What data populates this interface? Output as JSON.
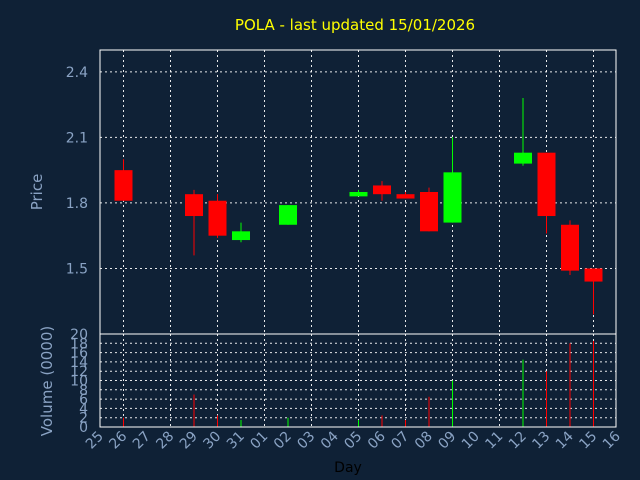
{
  "chart_data": {
    "type": "candlestick",
    "title": "POLA - last updated 15/01/2026",
    "colors": {
      "background": "#0f2136",
      "up": "#00ff00",
      "down": "#ff0000",
      "title": "#ffff00",
      "axis_text": "#8aa3c4",
      "grid": "#ffffff"
    },
    "x_ticks": [
      "25",
      "26",
      "27",
      "28",
      "29",
      "30",
      "31",
      "01",
      "02",
      "03",
      "04",
      "05",
      "06",
      "07",
      "08",
      "09",
      "10",
      "11",
      "12",
      "13",
      "14",
      "15",
      "16"
    ],
    "xlabel": "Day",
    "price": {
      "ylabel": "Price",
      "yticks": [
        "2.4",
        "2.1",
        "1.8",
        "1.5"
      ],
      "ytick_values": [
        2.4,
        2.1,
        1.8,
        1.5
      ],
      "ylim": [
        1.2,
        2.5
      ]
    },
    "volume": {
      "ylabel": "Volume (0000)",
      "yticks": [
        "20",
        "18",
        "16",
        "14",
        "12",
        "10",
        "8",
        "6",
        "4",
        "2",
        "0"
      ],
      "ytick_values": [
        20,
        18,
        16,
        14,
        12,
        10,
        8,
        6,
        4,
        2,
        0
      ],
      "ylim": [
        0,
        20
      ]
    },
    "candles": [
      {
        "day": "26",
        "open": 1.95,
        "close": 1.81,
        "high": 2.0,
        "low": 1.81
      },
      {
        "day": "29",
        "open": 1.84,
        "close": 1.74,
        "high": 1.86,
        "low": 1.56
      },
      {
        "day": "30",
        "open": 1.81,
        "close": 1.65,
        "high": 1.84,
        "low": 1.64
      },
      {
        "day": "31",
        "open": 1.63,
        "close": 1.67,
        "high": 1.71,
        "low": 1.62
      },
      {
        "day": "02",
        "open": 1.7,
        "close": 1.79,
        "high": 1.79,
        "low": 1.7
      },
      {
        "day": "05",
        "open": 1.83,
        "close": 1.85,
        "high": 1.86,
        "low": 1.83
      },
      {
        "day": "06",
        "open": 1.88,
        "close": 1.84,
        "high": 1.9,
        "low": 1.81
      },
      {
        "day": "07",
        "open": 1.84,
        "close": 1.82,
        "high": 1.85,
        "low": 1.82
      },
      {
        "day": "08",
        "open": 1.85,
        "close": 1.67,
        "high": 1.87,
        "low": 1.67
      },
      {
        "day": "09",
        "open": 1.71,
        "close": 1.94,
        "high": 2.1,
        "low": 1.71
      },
      {
        "day": "12",
        "open": 1.98,
        "close": 2.03,
        "high": 2.28,
        "low": 1.97
      },
      {
        "day": "13",
        "open": 2.03,
        "close": 1.74,
        "high": 2.03,
        "low": 1.66
      },
      {
        "day": "14",
        "open": 1.7,
        "close": 1.49,
        "high": 1.72,
        "low": 1.47
      },
      {
        "day": "15",
        "open": 1.5,
        "close": 1.44,
        "high": 1.5,
        "low": 1.29
      }
    ],
    "volumes": [
      {
        "day": "26",
        "value": 2.0,
        "direction": "down"
      },
      {
        "day": "29",
        "value": 7.0,
        "direction": "down"
      },
      {
        "day": "30",
        "value": 2.5,
        "direction": "down"
      },
      {
        "day": "31",
        "value": 1.5,
        "direction": "up"
      },
      {
        "day": "02",
        "value": 2.0,
        "direction": "up"
      },
      {
        "day": "05",
        "value": 1.5,
        "direction": "up"
      },
      {
        "day": "06",
        "value": 2.5,
        "direction": "down"
      },
      {
        "day": "07",
        "value": 1.5,
        "direction": "down"
      },
      {
        "day": "08",
        "value": 6.5,
        "direction": "down"
      },
      {
        "day": "09",
        "value": 10.0,
        "direction": "up"
      },
      {
        "day": "12",
        "value": 14.5,
        "direction": "up"
      },
      {
        "day": "13",
        "value": 12.0,
        "direction": "down"
      },
      {
        "day": "14",
        "value": 18.0,
        "direction": "down"
      },
      {
        "day": "15",
        "value": 18.5,
        "direction": "down"
      }
    ],
    "grid": true
  }
}
